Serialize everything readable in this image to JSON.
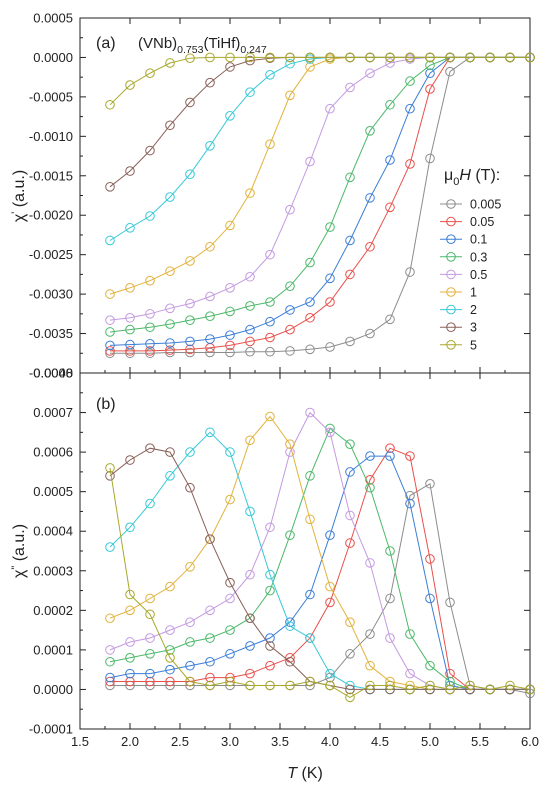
{
  "chart_data": [
    {
      "type": "line",
      "panel_label": "(a)",
      "title_parts": [
        "(VNb)",
        "0.753",
        "(TiHf)",
        "0.247"
      ],
      "ylabel_parts": [
        "χ",
        "'",
        " (a.u.)"
      ],
      "xlim": [
        1.5,
        6.0
      ],
      "ylim": [
        -0.004,
        0.0005
      ],
      "yticks": [
        "0.0005",
        "0.0000",
        "-0.0005",
        "-0.0010",
        "-0.0015",
        "-0.0020",
        "-0.0025",
        "-0.0030",
        "-0.0035",
        "-0.0040"
      ],
      "legend_title_parts": [
        "μ",
        "0",
        "H",
        " (T):"
      ],
      "legend_placement": "right",
      "grid": false,
      "series": [
        {
          "name": "0.005",
          "color": "#8c8c8c",
          "x": [
            1.8,
            2.0,
            2.2,
            2.4,
            2.6,
            2.8,
            3.0,
            3.2,
            3.4,
            3.6,
            3.8,
            4.0,
            4.2,
            4.4,
            4.6,
            4.8,
            5.0,
            5.2,
            5.4,
            5.6,
            5.8,
            6.0
          ],
          "y": [
            -0.00375,
            -0.00375,
            -0.00375,
            -0.00374,
            -0.00374,
            -0.00374,
            -0.00374,
            -0.00373,
            -0.00373,
            -0.00372,
            -0.0037,
            -0.00367,
            -0.0036,
            -0.0035,
            -0.00332,
            -0.00272,
            -0.00128,
            -0.00018,
            0.0,
            0.0,
            0.0,
            0.0
          ]
        },
        {
          "name": "0.05",
          "color": "#e8504a",
          "x": [
            1.8,
            2.0,
            2.2,
            2.4,
            2.6,
            2.8,
            3.0,
            3.2,
            3.4,
            3.6,
            3.8,
            4.0,
            4.2,
            4.4,
            4.6,
            4.8,
            5.0,
            5.2,
            5.4,
            5.6,
            5.8,
            6.0
          ],
          "y": [
            -0.00372,
            -0.00372,
            -0.00372,
            -0.00371,
            -0.0037,
            -0.00368,
            -0.00365,
            -0.0036,
            -0.00355,
            -0.00345,
            -0.0033,
            -0.0031,
            -0.00275,
            -0.0024,
            -0.0019,
            -0.00135,
            -0.0004,
            0.0,
            0.0,
            0.0,
            0.0,
            0.0
          ]
        },
        {
          "name": "0.1",
          "color": "#3c7ed6",
          "x": [
            1.8,
            2.0,
            2.2,
            2.4,
            2.6,
            2.8,
            3.0,
            3.2,
            3.4,
            3.6,
            3.8,
            4.0,
            4.2,
            4.4,
            4.6,
            4.8,
            5.0,
            5.2,
            5.4,
            5.6,
            5.8,
            6.0
          ],
          "y": [
            -0.00365,
            -0.00364,
            -0.00363,
            -0.00362,
            -0.0036,
            -0.00357,
            -0.00352,
            -0.00345,
            -0.00335,
            -0.0032,
            -0.0031,
            -0.0028,
            -0.00232,
            -0.00178,
            -0.0013,
            -0.00065,
            -0.0002,
            0.0,
            0.0,
            0.0,
            0.0,
            0.0
          ]
        },
        {
          "name": "0.3",
          "color": "#4cb86a",
          "x": [
            1.8,
            2.0,
            2.2,
            2.4,
            2.6,
            2.8,
            3.0,
            3.2,
            3.4,
            3.6,
            3.8,
            4.0,
            4.2,
            4.4,
            4.6,
            4.8,
            5.0,
            5.2,
            5.4,
            5.6,
            5.8,
            6.0
          ],
          "y": [
            -0.00348,
            -0.00345,
            -0.00342,
            -0.00338,
            -0.00333,
            -0.00328,
            -0.00322,
            -0.00315,
            -0.0031,
            -0.0029,
            -0.0026,
            -0.00215,
            -0.00152,
            -0.00093,
            -0.0006,
            -0.0003,
            -0.0001,
            0.0,
            0.0,
            0.0,
            0.0,
            0.0
          ]
        },
        {
          "name": "0.5",
          "color": "#c49ae0",
          "x": [
            1.8,
            2.0,
            2.2,
            2.4,
            2.6,
            2.8,
            3.0,
            3.2,
            3.4,
            3.6,
            3.8,
            4.0,
            4.2,
            4.4,
            4.6,
            4.8,
            5.0,
            5.2,
            5.4,
            5.6,
            5.8,
            6.0
          ],
          "y": [
            -0.00333,
            -0.0033,
            -0.00325,
            -0.00318,
            -0.00312,
            -0.00303,
            -0.00292,
            -0.00278,
            -0.0025,
            -0.00193,
            -0.00132,
            -0.00065,
            -0.00038,
            -0.0002,
            -7e-05,
            -2e-05,
            0.0,
            0.0,
            0.0,
            0.0,
            0.0,
            0.0
          ]
        },
        {
          "name": "1",
          "color": "#e2b23c",
          "x": [
            1.8,
            2.0,
            2.2,
            2.4,
            2.6,
            2.8,
            3.0,
            3.2,
            3.4,
            3.6,
            3.8,
            4.0,
            4.2,
            4.4,
            4.6,
            4.8,
            5.0,
            5.2,
            5.4,
            5.6,
            5.8,
            6.0
          ],
          "y": [
            -0.003,
            -0.00292,
            -0.00283,
            -0.00271,
            -0.00258,
            -0.0024,
            -0.00213,
            -0.00172,
            -0.0011,
            -0.00048,
            -0.00012,
            -2e-05,
            0.0,
            0.0,
            0.0,
            0.0,
            0.0,
            0.0,
            0.0,
            0.0,
            0.0,
            0.0
          ]
        },
        {
          "name": "2",
          "color": "#38c8d8",
          "x": [
            1.8,
            2.0,
            2.2,
            2.4,
            2.6,
            2.8,
            3.0,
            3.2,
            3.4,
            3.6,
            3.8,
            4.0,
            4.2,
            4.4,
            4.6,
            4.8,
            5.0,
            5.2,
            5.4,
            5.6,
            5.8,
            6.0
          ],
          "y": [
            -0.00232,
            -0.00216,
            -0.00201,
            -0.00177,
            -0.00148,
            -0.00112,
            -0.00074,
            -0.00044,
            -0.00022,
            -8e-05,
            -2e-05,
            0.0,
            0.0,
            0.0,
            0.0,
            0.0,
            0.0,
            0.0,
            0.0,
            0.0,
            0.0,
            0.0
          ]
        },
        {
          "name": "3",
          "color": "#8a6058",
          "x": [
            1.8,
            2.0,
            2.2,
            2.4,
            2.6,
            2.8,
            3.0,
            3.2,
            3.4,
            3.6,
            3.8,
            4.0,
            4.2,
            4.4,
            4.6,
            4.8,
            5.0,
            5.2,
            5.4,
            5.6,
            5.8,
            6.0
          ],
          "y": [
            -0.00164,
            -0.00144,
            -0.00118,
            -0.00086,
            -0.00057,
            -0.00032,
            -0.00012,
            -4e-05,
            -1e-05,
            0.0,
            0.0,
            0.0,
            0.0,
            0.0,
            0.0,
            0.0,
            0.0,
            0.0,
            0.0,
            0.0,
            0.0,
            0.0
          ]
        },
        {
          "name": "5",
          "color": "#a8a82c",
          "x": [
            1.8,
            2.0,
            2.2,
            2.4,
            2.6,
            2.8,
            3.0,
            3.2,
            3.4,
            3.6,
            3.8,
            4.0,
            4.2,
            4.4,
            4.6,
            4.8,
            5.0,
            5.2,
            5.4,
            5.6,
            5.8,
            6.0
          ],
          "y": [
            -0.0006,
            -0.00035,
            -0.0002,
            -7e-05,
            -1e-05,
            0.0,
            0.0,
            0.0,
            0.0,
            0.0,
            0.0,
            0.0,
            0.0,
            0.0,
            0.0,
            0.0,
            0.0,
            0.0,
            0.0,
            0.0,
            0.0,
            0.0
          ]
        }
      ]
    },
    {
      "type": "line",
      "panel_label": "(b)",
      "ylabel_parts": [
        "χ",
        "\"",
        " (a.u.)"
      ],
      "xlabel_parts": [
        "T",
        " (K)"
      ],
      "xlim": [
        1.5,
        6.0
      ],
      "ylim": [
        -0.0001,
        0.0008
      ],
      "yticks": [
        "0.0008",
        "0.0007",
        "0.0006",
        "0.0005",
        "0.0004",
        "0.0003",
        "0.0002",
        "0.0001",
        "0.0000",
        "-0.0001"
      ],
      "xticks": [
        "1.5",
        "2.0",
        "2.5",
        "3.0",
        "3.5",
        "4.0",
        "4.5",
        "5.0",
        "5.5",
        "6.0"
      ],
      "grid": false,
      "series": [
        {
          "name": "0.005",
          "color": "#8c8c8c",
          "x": [
            1.8,
            2.0,
            2.2,
            2.4,
            2.6,
            2.8,
            3.0,
            3.2,
            3.4,
            3.6,
            3.8,
            4.0,
            4.2,
            4.4,
            4.6,
            4.8,
            5.0,
            5.2,
            5.4,
            5.6,
            5.8,
            6.0
          ],
          "y": [
            1e-05,
            1e-05,
            1e-05,
            1e-05,
            1e-05,
            1e-05,
            1e-05,
            1e-05,
            1e-05,
            1e-05,
            1e-05,
            3e-05,
            9e-05,
            0.00014,
            0.00023,
            0.00049,
            0.00052,
            0.00022,
            1e-05,
            0.0,
            0.0,
            -1e-05
          ]
        },
        {
          "name": "0.05",
          "color": "#e8504a",
          "x": [
            1.8,
            2.0,
            2.2,
            2.4,
            2.6,
            2.8,
            3.0,
            3.2,
            3.4,
            3.6,
            3.8,
            4.0,
            4.2,
            4.4,
            4.6,
            4.8,
            5.0,
            5.2,
            5.4,
            5.6,
            5.8,
            6.0
          ],
          "y": [
            2e-05,
            2e-05,
            2e-05,
            2e-05,
            2e-05,
            3e-05,
            3e-05,
            4e-05,
            6e-05,
            8e-05,
            0.00013,
            0.00022,
            0.00037,
            0.00053,
            0.00061,
            0.00059,
            0.00033,
            4e-05,
            0.0,
            0.0,
            0.0,
            0.0
          ]
        },
        {
          "name": "0.1",
          "color": "#3c7ed6",
          "x": [
            1.8,
            2.0,
            2.2,
            2.4,
            2.6,
            2.8,
            3.0,
            3.2,
            3.4,
            3.6,
            3.8,
            4.0,
            4.2,
            4.4,
            4.6,
            4.8,
            5.0,
            5.2,
            5.4,
            5.6,
            5.8,
            6.0
          ],
          "y": [
            3e-05,
            4e-05,
            4e-05,
            5e-05,
            6e-05,
            7e-05,
            9e-05,
            0.00011,
            0.00013,
            0.00017,
            0.00024,
            0.00039,
            0.00055,
            0.00059,
            0.00059,
            0.00047,
            0.00023,
            1e-05,
            0.0,
            0.0,
            0.0,
            0.0
          ]
        },
        {
          "name": "0.3",
          "color": "#4cb86a",
          "x": [
            1.8,
            2.0,
            2.2,
            2.4,
            2.6,
            2.8,
            3.0,
            3.2,
            3.4,
            3.6,
            3.8,
            4.0,
            4.2,
            4.4,
            4.6,
            4.8,
            5.0,
            5.2,
            5.4,
            5.6,
            5.8,
            6.0
          ],
          "y": [
            7e-05,
            8e-05,
            9e-05,
            0.0001,
            0.00012,
            0.00013,
            0.00015,
            0.00018,
            0.00025,
            0.00039,
            0.00054,
            0.00066,
            0.00062,
            0.00051,
            0.00035,
            0.00014,
            6e-05,
            2e-05,
            0.0,
            0.0,
            0.0,
            0.0
          ]
        },
        {
          "name": "0.5",
          "color": "#c49ae0",
          "x": [
            1.8,
            2.0,
            2.2,
            2.4,
            2.6,
            2.8,
            3.0,
            3.2,
            3.4,
            3.6,
            3.8,
            4.0,
            4.2,
            4.4,
            4.6,
            4.8,
            5.0,
            5.2,
            5.4,
            5.6,
            5.8,
            6.0
          ],
          "y": [
            0.0001,
            0.00012,
            0.00013,
            0.00015,
            0.00017,
            0.0002,
            0.00023,
            0.00029,
            0.00041,
            0.0006,
            0.0007,
            0.00065,
            0.00044,
            0.00032,
            0.00013,
            4e-05,
            1e-05,
            0.0,
            0.0,
            0.0,
            0.0,
            0.0
          ]
        },
        {
          "name": "1",
          "color": "#e2b23c",
          "x": [
            1.8,
            2.0,
            2.2,
            2.4,
            2.6,
            2.8,
            3.0,
            3.2,
            3.4,
            3.6,
            3.8,
            4.0,
            4.2,
            4.4,
            4.6,
            4.8,
            5.0,
            5.2,
            5.4,
            5.6,
            5.8,
            6.0
          ],
          "y": [
            0.00018,
            0.0002,
            0.00023,
            0.00026,
            0.00031,
            0.00038,
            0.00048,
            0.00063,
            0.00069,
            0.00062,
            0.00043,
            0.00026,
            0.00017,
            6e-05,
            2e-05,
            1e-05,
            0.0,
            0.0,
            0.0,
            0.0,
            0.0,
            0.0
          ]
        },
        {
          "name": "2",
          "color": "#38c8d8",
          "x": [
            1.8,
            2.0,
            2.2,
            2.4,
            2.6,
            2.8,
            3.0,
            3.2,
            3.4,
            3.6,
            3.8,
            4.0,
            4.2,
            4.4,
            4.6,
            4.8,
            5.0,
            5.2,
            5.4,
            5.6,
            5.8,
            6.0
          ],
          "y": [
            0.00036,
            0.00041,
            0.00047,
            0.00054,
            0.0006,
            0.00065,
            0.0006,
            0.00045,
            0.00029,
            0.00016,
            0.00013,
            4e-05,
            1e-05,
            0.0,
            0.0,
            0.0,
            0.0,
            0.0,
            0.0,
            0.0,
            0.0,
            0.0
          ]
        },
        {
          "name": "3",
          "color": "#8a6058",
          "x": [
            1.8,
            2.0,
            2.2,
            2.4,
            2.6,
            2.8,
            3.0,
            3.2,
            3.4,
            3.6,
            3.8,
            4.0,
            4.2,
            4.4,
            4.6,
            4.8,
            5.0,
            5.2,
            5.4,
            5.6,
            5.8,
            6.0
          ],
          "y": [
            0.00054,
            0.00058,
            0.00061,
            0.0006,
            0.00051,
            0.00038,
            0.00027,
            0.00018,
            0.00011,
            7e-05,
            2e-05,
            1e-05,
            0.0,
            0.0,
            0.0,
            0.0,
            0.0,
            0.0,
            0.0,
            0.0,
            0.0,
            0.0
          ]
        },
        {
          "name": "5",
          "color": "#a8a82c",
          "x": [
            1.8,
            2.0,
            2.2,
            2.4,
            2.6,
            2.8,
            3.0,
            3.2,
            3.4,
            3.6,
            3.8,
            4.0,
            4.2,
            4.4,
            4.6,
            4.8,
            5.0,
            5.2,
            5.4,
            5.6,
            5.8,
            6.0
          ],
          "y": [
            0.00056,
            0.00024,
            0.00019,
            8e-05,
            2e-05,
            1e-05,
            2e-05,
            1e-05,
            1e-05,
            1e-05,
            2e-05,
            1e-05,
            -2e-05,
            1e-05,
            1e-05,
            0.0,
            1e-05,
            0.0,
            1e-05,
            0.0,
            1e-05,
            0.0
          ]
        }
      ]
    }
  ]
}
